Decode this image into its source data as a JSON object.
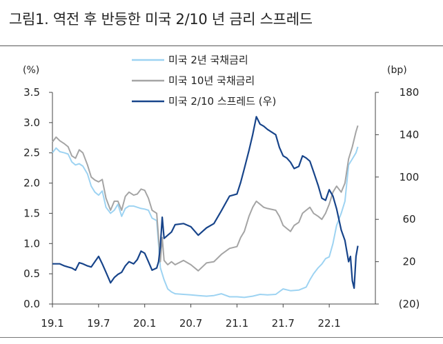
{
  "figure": {
    "title": "그림1. 역전 후 반등한 미국 2/10 년 금리 스프레드"
  },
  "chart_data": {
    "type": "line",
    "left_axis": {
      "unit": "(%)",
      "ylim": [
        0.0,
        3.5
      ],
      "ticks": [
        "0.0",
        "0.5",
        "1.0",
        "1.5",
        "2.0",
        "2.5",
        "3.0",
        "3.5"
      ]
    },
    "right_axis": {
      "unit": "(bp)",
      "ylim": [
        -20,
        180
      ],
      "ticks": [
        "(20)",
        "20",
        "60",
        "100",
        "140",
        "180"
      ]
    },
    "x_axis": {
      "range": [
        2019.0,
        2022.5
      ],
      "ticks": [
        "19.1",
        "19.7",
        "20.1",
        "20.7",
        "21.1",
        "21.7",
        "22.1"
      ]
    },
    "grid": false,
    "legend_position": "top-center",
    "colors": {
      "us2y": "#9dd3f2",
      "us10y": "#a4a4a4",
      "spread": "#17448a"
    },
    "series": [
      {
        "name": "미국 2년 국채금리",
        "axis": "left",
        "points": [
          [
            2019.0,
            2.5
          ],
          [
            2019.04,
            2.58
          ],
          [
            2019.08,
            2.52
          ],
          [
            2019.13,
            2.5
          ],
          [
            2019.17,
            2.48
          ],
          [
            2019.21,
            2.35
          ],
          [
            2019.25,
            2.3
          ],
          [
            2019.29,
            2.32
          ],
          [
            2019.33,
            2.28
          ],
          [
            2019.38,
            2.15
          ],
          [
            2019.42,
            1.95
          ],
          [
            2019.46,
            1.85
          ],
          [
            2019.5,
            1.8
          ],
          [
            2019.54,
            1.87
          ],
          [
            2019.58,
            1.6
          ],
          [
            2019.63,
            1.5
          ],
          [
            2019.67,
            1.55
          ],
          [
            2019.71,
            1.65
          ],
          [
            2019.75,
            1.45
          ],
          [
            2019.79,
            1.58
          ],
          [
            2019.83,
            1.62
          ],
          [
            2019.88,
            1.62
          ],
          [
            2019.92,
            1.6
          ],
          [
            2019.96,
            1.58
          ],
          [
            2020.0,
            1.57
          ],
          [
            2020.04,
            1.55
          ],
          [
            2020.08,
            1.42
          ],
          [
            2020.13,
            1.38
          ],
          [
            2020.17,
            0.6
          ],
          [
            2020.21,
            0.4
          ],
          [
            2020.25,
            0.25
          ],
          [
            2020.29,
            0.2
          ],
          [
            2020.33,
            0.17
          ],
          [
            2020.42,
            0.16
          ],
          [
            2020.5,
            0.15
          ],
          [
            2020.58,
            0.14
          ],
          [
            2020.67,
            0.13
          ],
          [
            2020.75,
            0.14
          ],
          [
            2020.83,
            0.17
          ],
          [
            2020.92,
            0.12
          ],
          [
            2021.0,
            0.12
          ],
          [
            2021.08,
            0.11
          ],
          [
            2021.17,
            0.13
          ],
          [
            2021.25,
            0.16
          ],
          [
            2021.33,
            0.15
          ],
          [
            2021.42,
            0.16
          ],
          [
            2021.5,
            0.25
          ],
          [
            2021.58,
            0.22
          ],
          [
            2021.67,
            0.23
          ],
          [
            2021.75,
            0.28
          ],
          [
            2021.79,
            0.4
          ],
          [
            2021.83,
            0.5
          ],
          [
            2021.88,
            0.6
          ],
          [
            2021.92,
            0.66
          ],
          [
            2021.96,
            0.75
          ],
          [
            2022.0,
            0.78
          ],
          [
            2022.04,
            1.0
          ],
          [
            2022.08,
            1.3
          ],
          [
            2022.13,
            1.5
          ],
          [
            2022.17,
            1.7
          ],
          [
            2022.21,
            2.3
          ],
          [
            2022.25,
            2.4
          ],
          [
            2022.29,
            2.5
          ],
          [
            2022.31,
            2.6
          ]
        ]
      },
      {
        "name": "미국 10년 국채금리",
        "axis": "left",
        "points": [
          [
            2019.0,
            2.68
          ],
          [
            2019.04,
            2.76
          ],
          [
            2019.08,
            2.7
          ],
          [
            2019.13,
            2.65
          ],
          [
            2019.17,
            2.6
          ],
          [
            2019.21,
            2.45
          ],
          [
            2019.25,
            2.41
          ],
          [
            2019.29,
            2.55
          ],
          [
            2019.33,
            2.5
          ],
          [
            2019.38,
            2.3
          ],
          [
            2019.42,
            2.1
          ],
          [
            2019.46,
            2.05
          ],
          [
            2019.5,
            2.02
          ],
          [
            2019.54,
            2.06
          ],
          [
            2019.58,
            1.75
          ],
          [
            2019.63,
            1.55
          ],
          [
            2019.67,
            1.7
          ],
          [
            2019.71,
            1.7
          ],
          [
            2019.75,
            1.55
          ],
          [
            2019.79,
            1.78
          ],
          [
            2019.83,
            1.85
          ],
          [
            2019.88,
            1.8
          ],
          [
            2019.92,
            1.82
          ],
          [
            2019.96,
            1.9
          ],
          [
            2020.0,
            1.88
          ],
          [
            2020.04,
            1.75
          ],
          [
            2020.08,
            1.55
          ],
          [
            2020.13,
            1.5
          ],
          [
            2020.17,
            0.7
          ],
          [
            2020.19,
            1.1
          ],
          [
            2020.21,
            0.72
          ],
          [
            2020.25,
            0.65
          ],
          [
            2020.29,
            0.7
          ],
          [
            2020.33,
            0.65
          ],
          [
            2020.42,
            0.72
          ],
          [
            2020.5,
            0.65
          ],
          [
            2020.58,
            0.55
          ],
          [
            2020.67,
            0.68
          ],
          [
            2020.75,
            0.7
          ],
          [
            2020.83,
            0.82
          ],
          [
            2020.92,
            0.92
          ],
          [
            2021.0,
            0.95
          ],
          [
            2021.04,
            1.1
          ],
          [
            2021.08,
            1.2
          ],
          [
            2021.13,
            1.45
          ],
          [
            2021.17,
            1.6
          ],
          [
            2021.21,
            1.7
          ],
          [
            2021.25,
            1.65
          ],
          [
            2021.29,
            1.6
          ],
          [
            2021.33,
            1.58
          ],
          [
            2021.42,
            1.55
          ],
          [
            2021.46,
            1.45
          ],
          [
            2021.5,
            1.3
          ],
          [
            2021.54,
            1.25
          ],
          [
            2021.58,
            1.2
          ],
          [
            2021.62,
            1.3
          ],
          [
            2021.67,
            1.35
          ],
          [
            2021.71,
            1.5
          ],
          [
            2021.75,
            1.55
          ],
          [
            2021.79,
            1.6
          ],
          [
            2021.83,
            1.5
          ],
          [
            2021.88,
            1.45
          ],
          [
            2021.92,
            1.4
          ],
          [
            2021.96,
            1.5
          ],
          [
            2022.0,
            1.65
          ],
          [
            2022.04,
            1.85
          ],
          [
            2022.08,
            1.95
          ],
          [
            2022.13,
            1.85
          ],
          [
            2022.17,
            2.0
          ],
          [
            2022.21,
            2.4
          ],
          [
            2022.25,
            2.6
          ],
          [
            2022.29,
            2.85
          ],
          [
            2022.31,
            2.95
          ]
        ]
      },
      {
        "name": "미국 2/10 스프레드 (우)",
        "axis": "right",
        "points": [
          [
            2019.0,
            18
          ],
          [
            2019.04,
            18
          ],
          [
            2019.08,
            18
          ],
          [
            2019.13,
            16
          ],
          [
            2019.17,
            15
          ],
          [
            2019.21,
            14
          ],
          [
            2019.25,
            12
          ],
          [
            2019.29,
            19
          ],
          [
            2019.33,
            18
          ],
          [
            2019.38,
            16
          ],
          [
            2019.42,
            15
          ],
          [
            2019.46,
            20
          ],
          [
            2019.5,
            25
          ],
          [
            2019.54,
            18
          ],
          [
            2019.58,
            10
          ],
          [
            2019.61,
            4
          ],
          [
            2019.63,
            0
          ],
          [
            2019.67,
            5
          ],
          [
            2019.71,
            8
          ],
          [
            2019.75,
            10
          ],
          [
            2019.79,
            16
          ],
          [
            2019.83,
            20
          ],
          [
            2019.88,
            18
          ],
          [
            2019.92,
            22
          ],
          [
            2019.96,
            30
          ],
          [
            2020.0,
            28
          ],
          [
            2020.04,
            20
          ],
          [
            2020.08,
            12
          ],
          [
            2020.13,
            14
          ],
          [
            2020.15,
            20
          ],
          [
            2020.17,
            35
          ],
          [
            2020.19,
            62
          ],
          [
            2020.21,
            42
          ],
          [
            2020.25,
            45
          ],
          [
            2020.29,
            48
          ],
          [
            2020.33,
            55
          ],
          [
            2020.42,
            56
          ],
          [
            2020.5,
            53
          ],
          [
            2020.58,
            45
          ],
          [
            2020.67,
            52
          ],
          [
            2020.75,
            56
          ],
          [
            2020.83,
            68
          ],
          [
            2020.92,
            82
          ],
          [
            2021.0,
            84
          ],
          [
            2021.04,
            95
          ],
          [
            2021.08,
            108
          ],
          [
            2021.13,
            125
          ],
          [
            2021.17,
            140
          ],
          [
            2021.21,
            157
          ],
          [
            2021.25,
            150
          ],
          [
            2021.29,
            148
          ],
          [
            2021.33,
            145
          ],
          [
            2021.42,
            140
          ],
          [
            2021.46,
            128
          ],
          [
            2021.5,
            120
          ],
          [
            2021.54,
            118
          ],
          [
            2021.58,
            114
          ],
          [
            2021.62,
            108
          ],
          [
            2021.67,
            110
          ],
          [
            2021.71,
            120
          ],
          [
            2021.75,
            118
          ],
          [
            2021.79,
            115
          ],
          [
            2021.83,
            105
          ],
          [
            2021.88,
            92
          ],
          [
            2021.92,
            80
          ],
          [
            2021.96,
            78
          ],
          [
            2022.0,
            88
          ],
          [
            2022.04,
            82
          ],
          [
            2022.08,
            70
          ],
          [
            2022.13,
            50
          ],
          [
            2022.17,
            40
          ],
          [
            2022.21,
            20
          ],
          [
            2022.23,
            25
          ],
          [
            2022.25,
            2
          ],
          [
            2022.27,
            -5
          ],
          [
            2022.29,
            25
          ],
          [
            2022.31,
            35
          ]
        ]
      }
    ]
  }
}
